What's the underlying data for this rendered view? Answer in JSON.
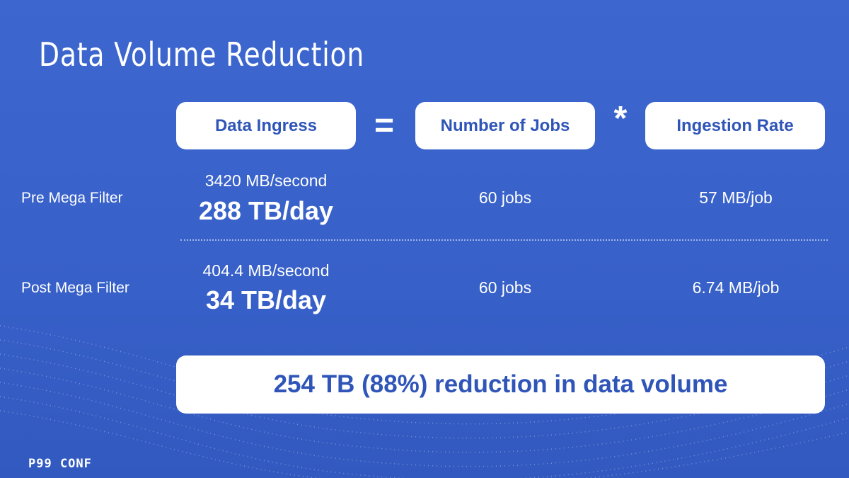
{
  "title": "Data Volume Reduction",
  "header": {
    "cells": [
      "Data Ingress",
      "Number of Jobs",
      "Ingestion Rate"
    ],
    "operators": [
      "=",
      "*"
    ]
  },
  "rows": [
    {
      "label": "Pre Mega Filter",
      "rate": "3420 MB/second",
      "daily": "288 TB/day",
      "jobs": "60 jobs",
      "per_job": "57 MB/job"
    },
    {
      "label": "Post Mega Filter",
      "rate": "404.4 MB/second",
      "daily": "34 TB/day",
      "jobs": "60 jobs",
      "per_job": "6.74 MB/job"
    }
  ],
  "summary": "254 TB (88%) reduction in data volume",
  "logo": "P99 CONF"
}
